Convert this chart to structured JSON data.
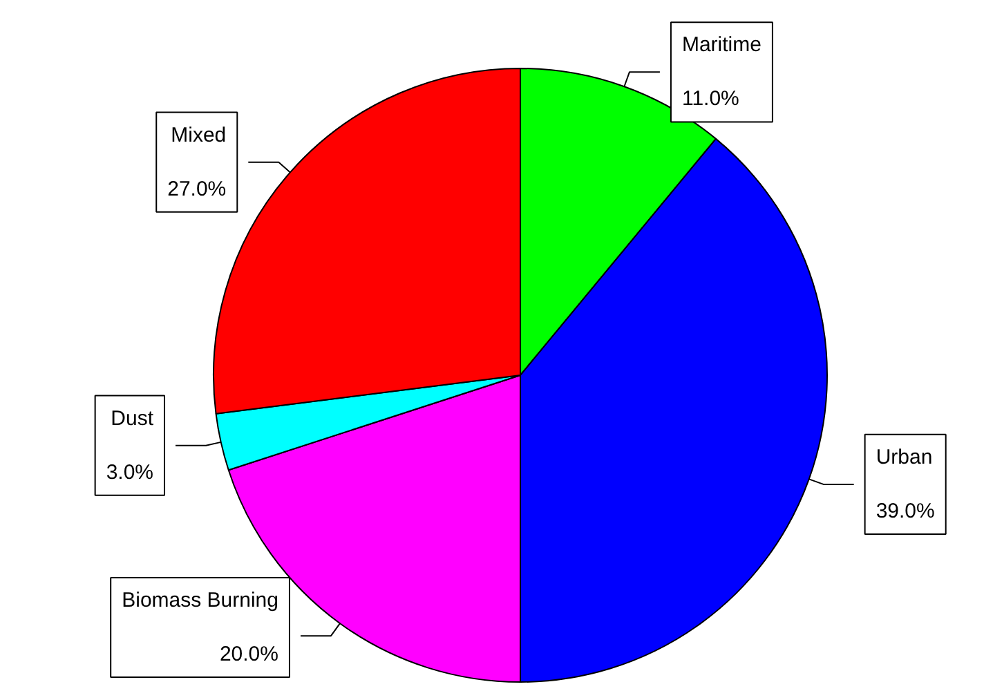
{
  "chart_data": {
    "type": "pie",
    "categories": [
      "Maritime",
      "Urban",
      "Biomass Burning",
      "Dust",
      "Mixed"
    ],
    "values": [
      11,
      39,
      20,
      3,
      27
    ],
    "colors": [
      "#00ff00",
      "#0000ff",
      "#ff00ff",
      "#00ffff",
      "#ff0000"
    ],
    "value_labels": [
      "11.0%",
      "39.0%",
      "20.0%",
      "3.0%",
      "27.0%"
    ]
  }
}
